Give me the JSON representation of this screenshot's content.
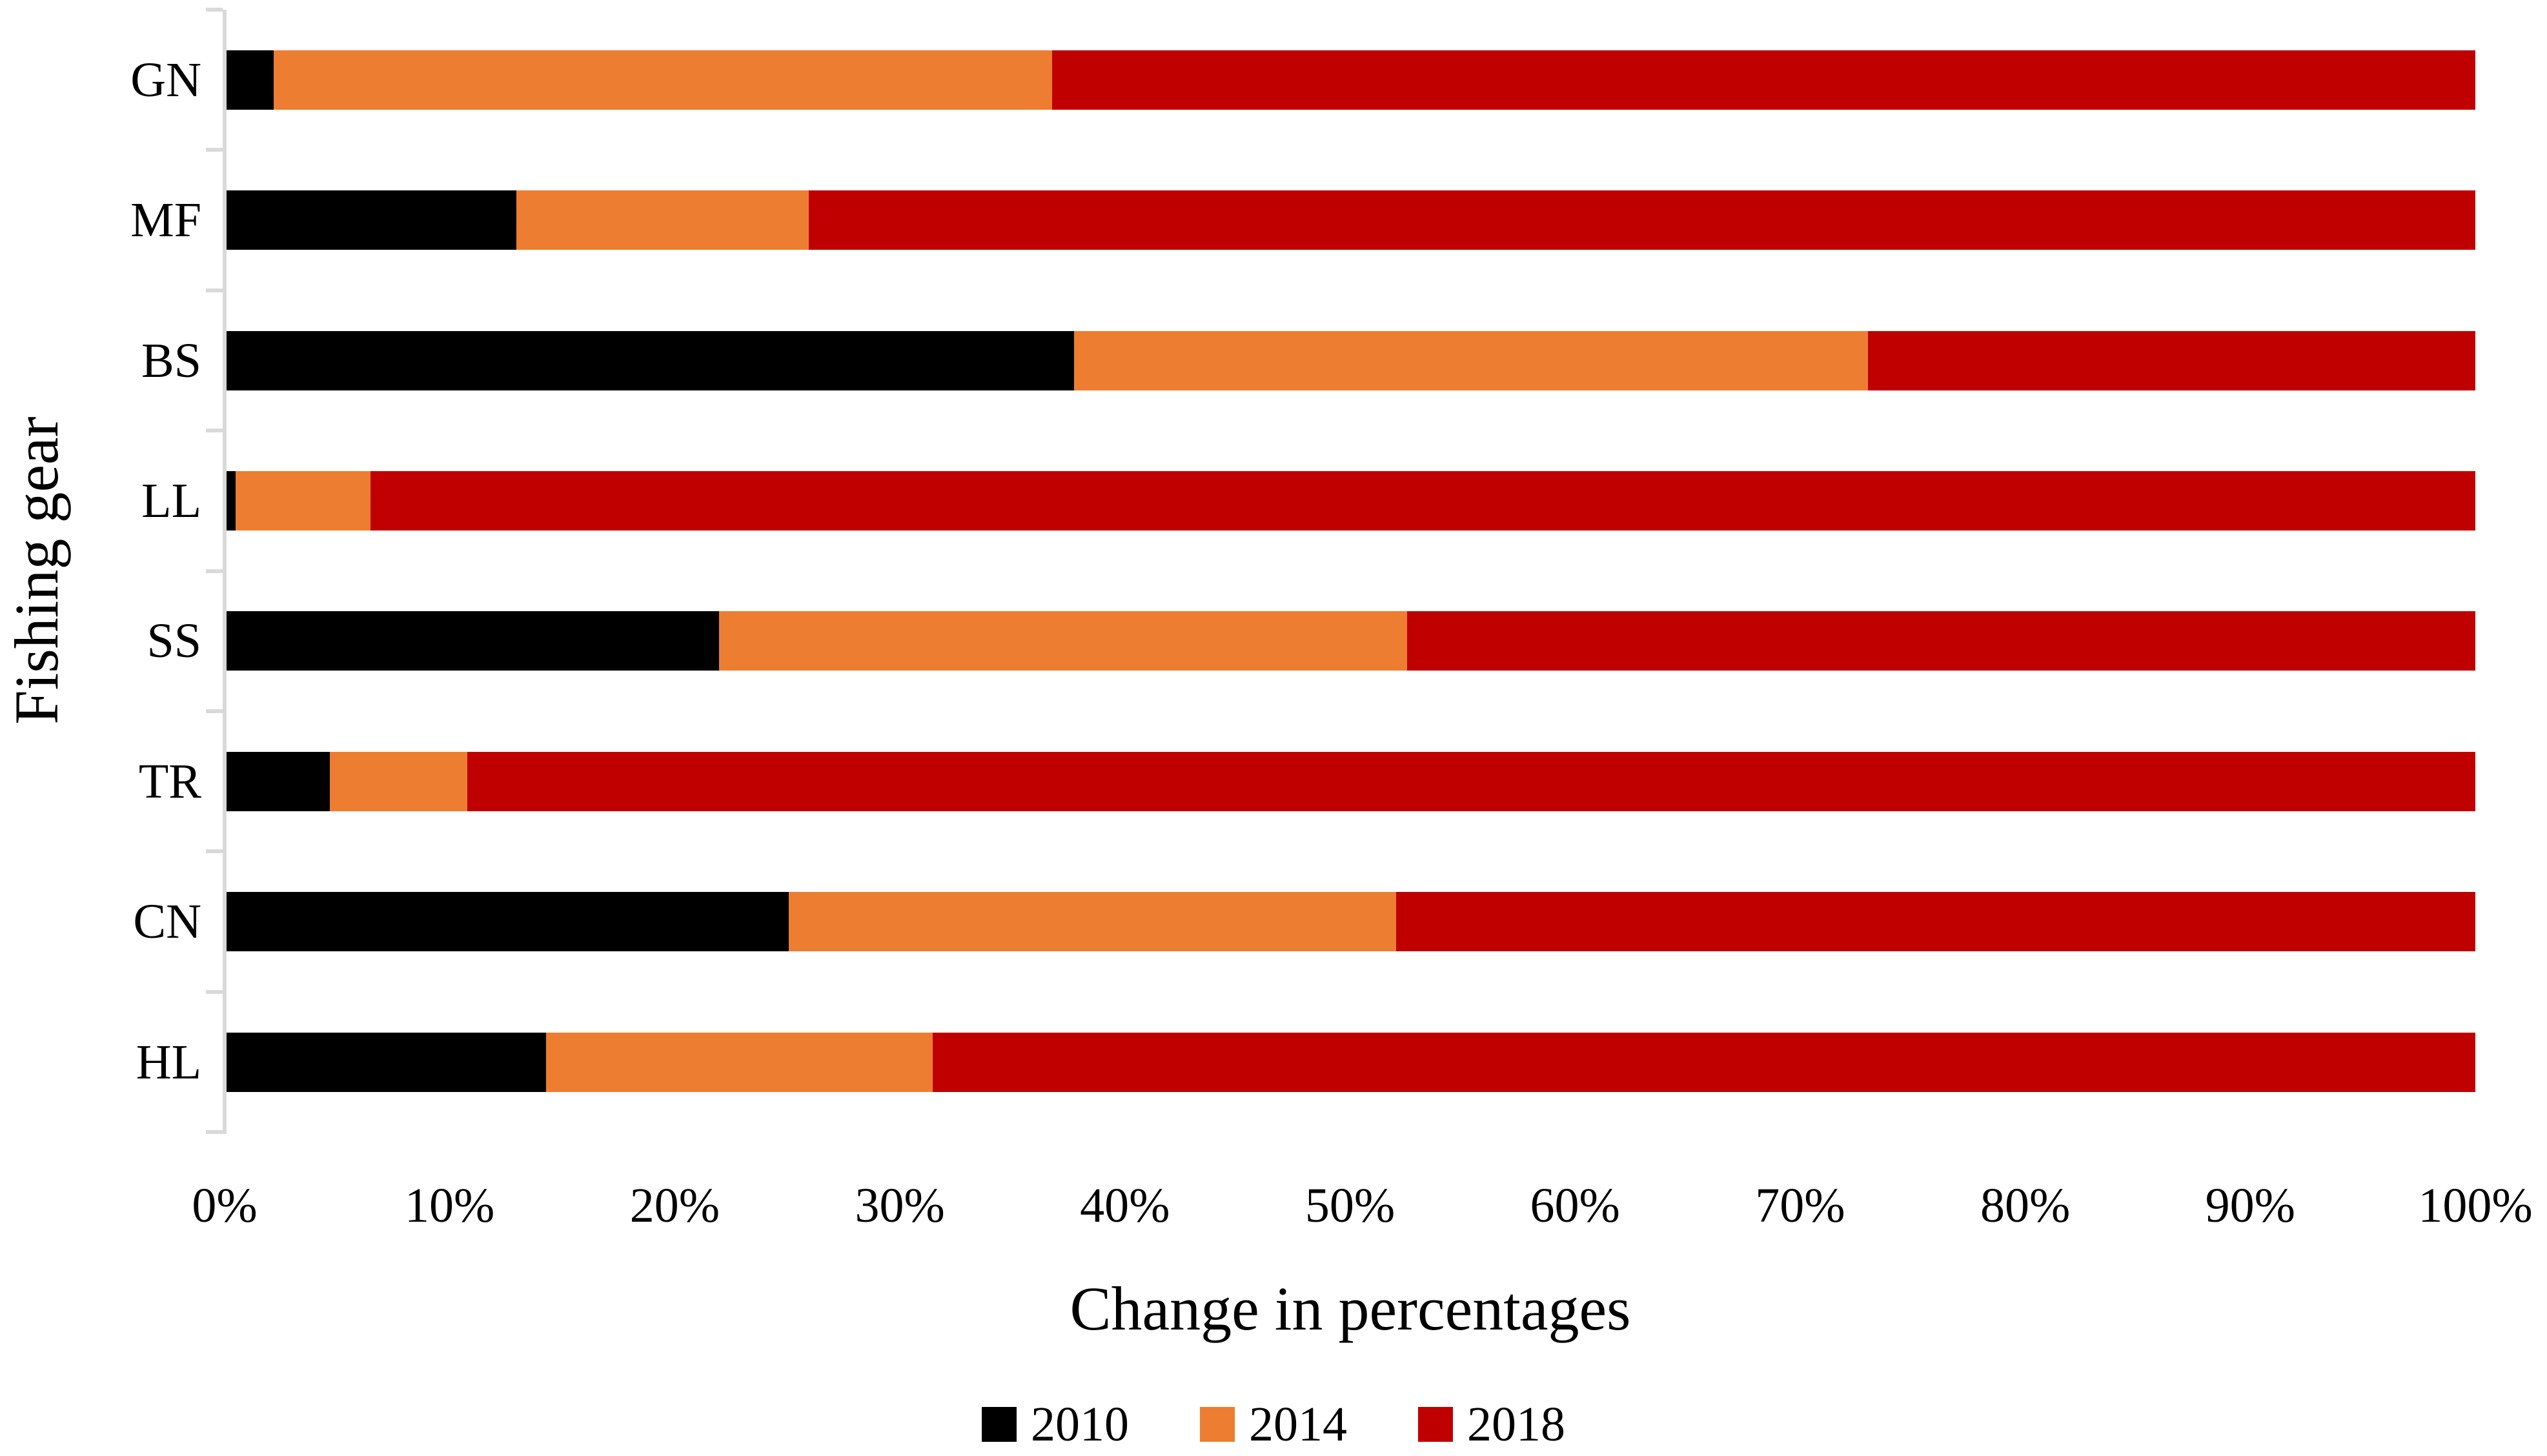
{
  "chart_data": {
    "type": "bar",
    "orientation": "horizontal",
    "stacked": true,
    "categories": [
      "GN",
      "MF",
      "BS",
      "LL",
      "SS",
      "TR",
      "CN",
      "HL"
    ],
    "series": [
      {
        "name": "2010",
        "color": "#000000",
        "values": [
          2.1,
          12.9,
          37.7,
          0.4,
          21.9,
          4.6,
          25.0,
          14.2
        ]
      },
      {
        "name": "2014",
        "color": "#ED7D31",
        "values": [
          34.6,
          13.0,
          35.3,
          6.0,
          30.6,
          6.1,
          27.0,
          17.2
        ]
      },
      {
        "name": "2018",
        "color": "#C00000",
        "values": [
          63.3,
          74.1,
          27.0,
          93.6,
          47.5,
          89.3,
          48.0,
          68.6
        ]
      }
    ],
    "xlabel": "Change in percentages",
    "ylabel": "Fishing gear",
    "xlim": [
      0,
      100
    ],
    "x_tick_labels": [
      "0%",
      "10%",
      "20%",
      "30%",
      "40%",
      "50%",
      "60%",
      "70%",
      "80%",
      "90%",
      "100%"
    ],
    "grid": false,
    "legend_position": "bottom",
    "axis_color": "#D9D9D9",
    "text_color": "#000000",
    "background_color": "#FFFFFF"
  }
}
